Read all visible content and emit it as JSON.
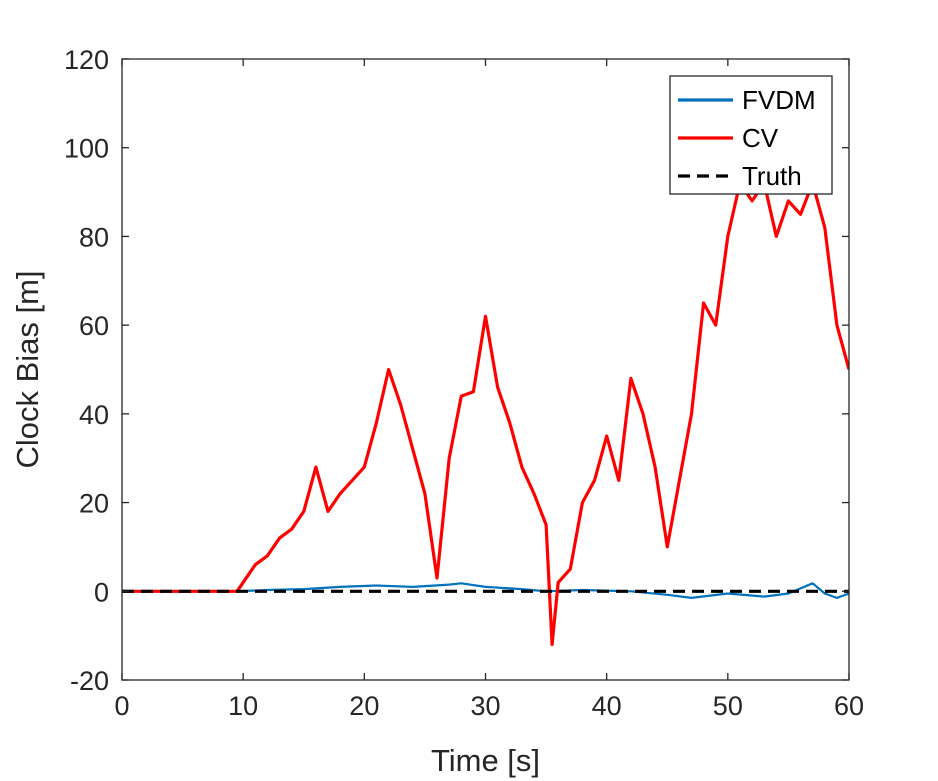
{
  "chart_data": {
    "type": "line",
    "title": "",
    "xlabel": "Time [s]",
    "ylabel": "Clock Bias [m]",
    "xlim": [
      0,
      60
    ],
    "ylim": [
      -20,
      120
    ],
    "xticks": [
      0,
      10,
      20,
      30,
      40,
      50,
      60
    ],
    "xtick_labels": [
      "0",
      "10",
      "20",
      "30",
      "40",
      "50",
      "60"
    ],
    "yticks": [
      -20,
      0,
      20,
      40,
      60,
      80,
      100,
      120
    ],
    "ytick_labels": [
      "-20",
      "0",
      "20",
      "40",
      "60",
      "80",
      "100",
      "120"
    ],
    "grid": false,
    "legend_position": "top-right",
    "series": [
      {
        "name": "FVDM",
        "color": "#0072BD",
        "style": "solid",
        "x": [
          0,
          5,
          9.5,
          12,
          15,
          18,
          21,
          24,
          27,
          28,
          30,
          33,
          35,
          38,
          42,
          45,
          47,
          50,
          53,
          55,
          57,
          58,
          59,
          60
        ],
        "y": [
          0,
          0,
          0,
          0.3,
          0.5,
          1,
          1.3,
          1,
          1.5,
          1.8,
          1,
          0.5,
          0,
          0.3,
          0,
          -0.8,
          -1.5,
          -0.5,
          -1.2,
          -0.5,
          1.8,
          -0.5,
          -1.5,
          -0.5
        ]
      },
      {
        "name": "CV",
        "color": "#FF0000",
        "style": "solid",
        "x": [
          0,
          2,
          5,
          9.5,
          11,
          12,
          13,
          14,
          15,
          16,
          17,
          18,
          19,
          20,
          21,
          22,
          23,
          24,
          25,
          26,
          27,
          28,
          29,
          30,
          31,
          32,
          33,
          34,
          35,
          35.5,
          36,
          37,
          38,
          39,
          40,
          41,
          42,
          43,
          44,
          45,
          46,
          47,
          48,
          49,
          50,
          51,
          52,
          53,
          54,
          55,
          56,
          57,
          58,
          59,
          60
        ],
        "y": [
          0,
          0,
          0,
          0,
          6,
          8,
          12,
          14,
          18,
          28,
          18,
          22,
          25,
          28,
          38,
          50,
          42,
          32,
          22,
          3,
          30,
          44,
          45,
          62,
          46,
          38,
          28,
          22,
          15,
          -12,
          2,
          5,
          20,
          25,
          35,
          25,
          48,
          40,
          28,
          10,
          25,
          40,
          65,
          60,
          80,
          92,
          88,
          92,
          80,
          88,
          85,
          92,
          82,
          60,
          50
        ]
      },
      {
        "name": "Truth",
        "color": "#000000",
        "style": "dashed",
        "x": [
          0,
          60
        ],
        "y": [
          0,
          0
        ]
      }
    ]
  }
}
